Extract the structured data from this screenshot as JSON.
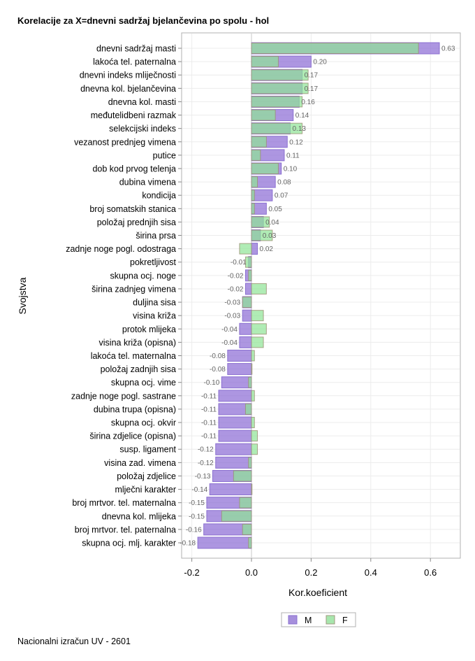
{
  "chart_data": {
    "type": "bar",
    "orientation": "horizontal",
    "title": "Korelacije za X=dnevni sadržaj bjelančevina po spolu - hol",
    "xlabel": "Kor.koeficient",
    "ylabel": "Svojstva",
    "xlim": [
      -0.22,
      0.7
    ],
    "xticks": [
      -0.2,
      0.0,
      0.2,
      0.4,
      0.6
    ],
    "xtick_labels": [
      "-0.2",
      "0.0",
      "0.2",
      "0.4",
      "0.6"
    ],
    "grid": true,
    "legend_position": "bottom",
    "colors": {
      "M": "#9370db",
      "F": "#90ee90"
    },
    "categories": [
      "dnevni sadržaj masti",
      "lakoća tel. paternalna",
      "dnevni indeks mliječnosti",
      "dnevna kol. bjelančevina",
      "dnevna kol. masti",
      "međutelidbeni razmak",
      "selekcijski indeks",
      "vezanost prednjeg vimena",
      "putice",
      "dob kod prvog telenja",
      "dubina vimena",
      "kondicija",
      "broj somatskih stanica",
      "položaj prednjih sisa",
      "širina prsa",
      "zadnje noge pogl. odostraga",
      "pokretljivost",
      "skupna ocj. noge",
      "širina zadnjeg vimena",
      "duljina sisa",
      "visina križa",
      "protok mlijeka",
      "visina križa (opisna)",
      "lakoća tel. maternalna",
      "položaj zadnjih sisa",
      "skupna ocj. vime",
      "zadnje noge pogl. sastrane",
      "dubina trupa (opisna)",
      "skupna ocj. okvir",
      "širina zdjelice (opisna)",
      "susp. ligament",
      "visina zad. vimena",
      "položaj zdjelice",
      "mlječni karakter",
      "broj mrtvor. tel. maternalna",
      "dnevna kol. mlijeka",
      "broj mrtvor. tel. paternalna",
      "skupna ocj. mlj. karakter"
    ],
    "series": [
      {
        "name": "M",
        "values": [
          0.63,
          0.2,
          0.17,
          0.17,
          0.16,
          0.14,
          0.13,
          0.12,
          0.11,
          0.1,
          0.08,
          0.07,
          0.05,
          0.04,
          0.03,
          0.02,
          -0.01,
          -0.02,
          -0.02,
          -0.03,
          -0.03,
          -0.04,
          -0.04,
          -0.08,
          -0.08,
          -0.1,
          -0.11,
          -0.11,
          -0.11,
          -0.11,
          -0.12,
          -0.12,
          -0.13,
          -0.14,
          -0.15,
          -0.15,
          -0.16,
          -0.18
        ],
        "labels": [
          "0.63",
          "0.20",
          "0.17",
          "0.17",
          "0.16",
          "0.14",
          "0.13",
          "0.12",
          "0.11",
          "0.10",
          "0.08",
          "0.07",
          "0.05",
          "0.04",
          "0.03",
          "0.02",
          "-0.01",
          "-0.02",
          "-0.02",
          "-0.03",
          "-0.03",
          "-0.04",
          "-0.04",
          "-0.08",
          "-0.08",
          "-0.10",
          "-0.11",
          "-0.11",
          "-0.11",
          "-0.11",
          "-0.12",
          "-0.12",
          "-0.13",
          "-0.14",
          "-0.15",
          "-0.15",
          "-0.16",
          "-0.18"
        ]
      },
      {
        "name": "F",
        "values": [
          0.56,
          0.09,
          0.19,
          0.19,
          0.17,
          0.08,
          0.17,
          0.05,
          0.03,
          0.09,
          0.02,
          0.01,
          0.01,
          0.06,
          0.07,
          -0.04,
          -0.02,
          -0.01,
          0.05,
          -0.03,
          0.04,
          0.05,
          0.04,
          0.01,
          0.0,
          -0.01,
          0.01,
          -0.02,
          0.01,
          0.02,
          0.02,
          -0.01,
          -0.06,
          0.0,
          -0.04,
          -0.1,
          -0.03,
          -0.01
        ]
      }
    ]
  },
  "footer": "Nacionalni izračun UV - 2601"
}
